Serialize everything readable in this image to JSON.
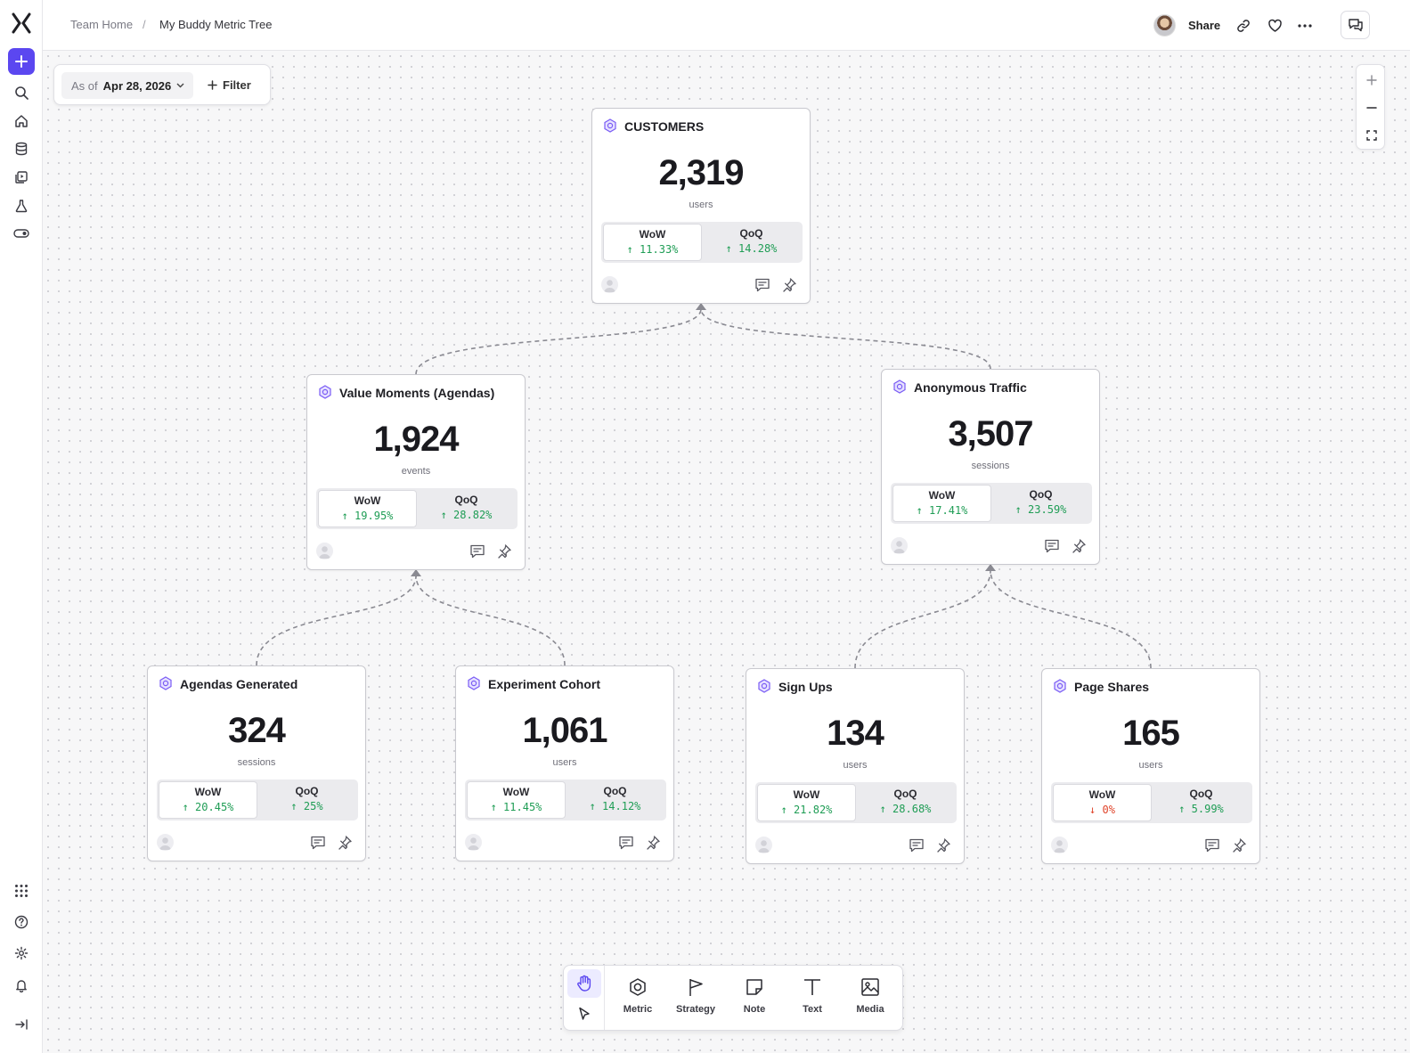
{
  "breadcrumb": {
    "root": "Team Home",
    "separator": "/",
    "current": "My Buddy Metric Tree"
  },
  "header": {
    "share_label": "Share"
  },
  "filter": {
    "as_of_label": "As of",
    "date": "Apr 28, 2026",
    "filter_label": "Filter"
  },
  "colors": {
    "accent": "#5b47f0",
    "positive": "#1f9d55",
    "negative": "#e0452b"
  },
  "cards": [
    {
      "id": "customers",
      "title": "CUSTOMERS",
      "value": "2,319",
      "unit": "users",
      "wow_label": "WoW",
      "wow": "11.33%",
      "wow_dir": "up",
      "qoq_label": "QoQ",
      "qoq": "14.28%",
      "qoq_dir": "up"
    },
    {
      "id": "value-moments",
      "title": "Value Moments (Agendas)",
      "value": "1,924",
      "unit": "events",
      "wow_label": "WoW",
      "wow": "19.95%",
      "wow_dir": "up",
      "qoq_label": "QoQ",
      "qoq": "28.82%",
      "qoq_dir": "up"
    },
    {
      "id": "anonymous-traffic",
      "title": "Anonymous Traffic",
      "value": "3,507",
      "unit": "sessions",
      "wow_label": "WoW",
      "wow": "17.41%",
      "wow_dir": "up",
      "qoq_label": "QoQ",
      "qoq": "23.59%",
      "qoq_dir": "up"
    },
    {
      "id": "agendas-generated",
      "title": "Agendas Generated",
      "value": "324",
      "unit": "sessions",
      "wow_label": "WoW",
      "wow": "20.45%",
      "wow_dir": "up",
      "qoq_label": "QoQ",
      "qoq": "25%",
      "qoq_dir": "up"
    },
    {
      "id": "experiment-cohort",
      "title": "Experiment Cohort",
      "value": "1,061",
      "unit": "users",
      "wow_label": "WoW",
      "wow": "11.45%",
      "wow_dir": "up",
      "qoq_label": "QoQ",
      "qoq": "14.12%",
      "qoq_dir": "up"
    },
    {
      "id": "sign-ups",
      "title": "Sign Ups",
      "value": "134",
      "unit": "users",
      "wow_label": "WoW",
      "wow": "21.82%",
      "wow_dir": "up",
      "qoq_label": "QoQ",
      "qoq": "28.68%",
      "qoq_dir": "up"
    },
    {
      "id": "page-shares",
      "title": "Page Shares",
      "value": "165",
      "unit": "users",
      "wow_label": "WoW",
      "wow": "0%",
      "wow_dir": "down",
      "qoq_label": "QoQ",
      "qoq": "5.99%",
      "qoq_dir": "up"
    }
  ],
  "toolbar": {
    "tools": [
      {
        "id": "metric",
        "label": "Metric",
        "icon": "hexagon-icon"
      },
      {
        "id": "strategy",
        "label": "Strategy",
        "icon": "flag-icon"
      },
      {
        "id": "note",
        "label": "Note",
        "icon": "note-icon"
      },
      {
        "id": "text",
        "label": "Text",
        "icon": "text-icon"
      },
      {
        "id": "media",
        "label": "Media",
        "icon": "image-icon"
      }
    ]
  }
}
